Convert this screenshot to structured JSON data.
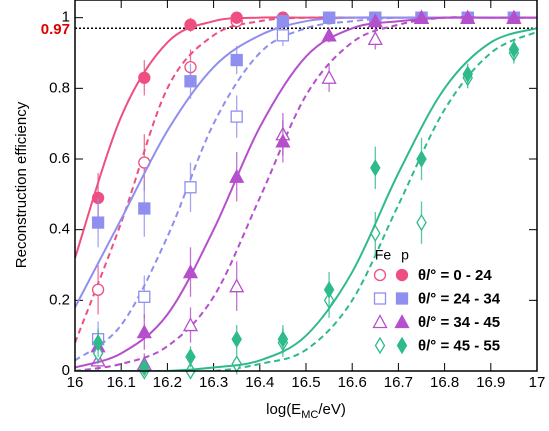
{
  "chart_data": {
    "type": "efficiency",
    "ylabel": "Reconstruction efficiency",
    "xlabel_parts": [
      "log(E",
      "MC",
      "/eV)"
    ],
    "xlim": [
      16,
      17
    ],
    "ylim": [
      0,
      1.05
    ],
    "xticks": [
      16,
      16.1,
      16.2,
      16.3,
      16.4,
      16.5,
      16.6,
      16.7,
      16.8,
      16.9,
      17
    ],
    "yticks": [
      0,
      0.2,
      0.4,
      0.6,
      0.8,
      1
    ],
    "hline": {
      "value": 0.97,
      "label": "0.97",
      "color": "#e00000"
    },
    "legend_columns": [
      "Fe",
      "p"
    ],
    "x": [
      16.05,
      16.15,
      16.25,
      16.35,
      16.45,
      16.55,
      16.65,
      16.75,
      16.85,
      16.95
    ],
    "fit_x": [
      16.0,
      16.1,
      16.2,
      16.3,
      16.4,
      16.5,
      16.6,
      16.7,
      16.8,
      16.9,
      17.0
    ],
    "groups": [
      {
        "label": "θ/° = 0 - 24",
        "color": "#ee4f80",
        "marker": "circle",
        "Fe": {
          "values": [
            0.23,
            0.59,
            0.86,
            0.99,
            1.0,
            1.0,
            1.0,
            1.0,
            1.0,
            1.0
          ],
          "errors": [
            0.07,
            0.08,
            0.05,
            0.01,
            0.01,
            0.01,
            0.01,
            0.01,
            0.01,
            0.01
          ],
          "fit": [
            0.08,
            0.42,
            0.8,
            0.95,
            0.99,
            1,
            1,
            1,
            1,
            1,
            1
          ]
        },
        "p": {
          "values": [
            0.49,
            0.83,
            0.98,
            1.0,
            1.0,
            1.0,
            1.0,
            1.0,
            1.0,
            1.0
          ],
          "errors": [
            0.07,
            0.05,
            0.02,
            0.01,
            0.01,
            0.01,
            0.01,
            0.01,
            0.01,
            0.01
          ],
          "fit": [
            0.32,
            0.72,
            0.93,
            0.99,
            1,
            1,
            1,
            1,
            1,
            1,
            1
          ]
        }
      },
      {
        "label": "θ/° = 24 - 34",
        "color": "#8f8ff0",
        "marker": "square",
        "Fe": {
          "values": [
            0.09,
            0.21,
            0.52,
            0.72,
            0.95,
            1.0,
            1.0,
            1.0,
            1.0,
            1.0
          ],
          "errors": [
            0.05,
            0.06,
            0.07,
            0.06,
            0.03,
            0.01,
            0.01,
            0.01,
            0.01,
            0.01
          ],
          "fit": [
            0.03,
            0.13,
            0.38,
            0.7,
            0.9,
            0.97,
            0.99,
            1,
            1,
            1,
            1
          ]
        },
        "p": {
          "values": [
            0.42,
            0.46,
            0.82,
            0.88,
            0.99,
            1.0,
            1.0,
            1.0,
            1.0,
            1.0
          ],
          "errors": [
            0.07,
            0.08,
            0.05,
            0.04,
            0.01,
            0.01,
            0.01,
            0.01,
            0.01,
            0.01
          ],
          "fit": [
            0.18,
            0.43,
            0.68,
            0.86,
            0.95,
            0.99,
            1,
            1,
            1,
            1,
            1
          ]
        }
      },
      {
        "label": "θ/° = 34 - 45",
        "color": "#b54fcc",
        "marker": "triangle",
        "Fe": {
          "values": [
            0.03,
            0.02,
            0.13,
            0.24,
            0.67,
            0.83,
            0.94,
            1.0,
            1.0,
            1.0
          ],
          "errors": [
            0.03,
            0.03,
            0.05,
            0.07,
            0.06,
            0.04,
            0.03,
            0.01,
            0.01,
            0.01
          ],
          "fit": [
            0.0,
            0.02,
            0.07,
            0.21,
            0.49,
            0.78,
            0.93,
            0.98,
            1,
            1,
            1
          ]
        },
        "p": {
          "values": [
            0.07,
            0.11,
            0.28,
            0.55,
            0.65,
            0.95,
            0.99,
            1.0,
            1.0,
            1.0
          ],
          "errors": [
            0.04,
            0.05,
            0.07,
            0.07,
            0.06,
            0.02,
            0.01,
            0.01,
            0.01,
            0.01
          ],
          "fit": [
            0.01,
            0.05,
            0.16,
            0.4,
            0.69,
            0.89,
            0.97,
            0.99,
            1,
            1,
            1
          ]
        }
      },
      {
        "label": "θ/° = 45 - 55",
        "color": "#2fba8c",
        "marker": "diamond",
        "Fe": {
          "values": [
            0.05,
            0.0,
            0.0,
            0.02,
            0.08,
            0.2,
            0.39,
            0.42,
            0.83,
            0.9
          ],
          "errors": [
            0.03,
            0.02,
            0.02,
            0.03,
            0.04,
            0.05,
            0.06,
            0.06,
            0.03,
            0.03
          ],
          "fit": [
            0,
            0,
            0,
            0,
            0.02,
            0.06,
            0.2,
            0.47,
            0.74,
            0.9,
            0.96
          ]
        },
        "p": {
          "values": [
            0.08,
            0.01,
            0.04,
            0.09,
            0.09,
            0.23,
            0.575,
            0.6,
            0.84,
            0.91
          ],
          "errors": [
            0.04,
            0.02,
            0.03,
            0.04,
            0.04,
            0.05,
            0.06,
            0.06,
            0.03,
            0.03
          ],
          "fit": [
            0,
            0,
            0,
            0.01,
            0.03,
            0.1,
            0.28,
            0.56,
            0.8,
            0.93,
            0.97
          ]
        }
      }
    ]
  }
}
